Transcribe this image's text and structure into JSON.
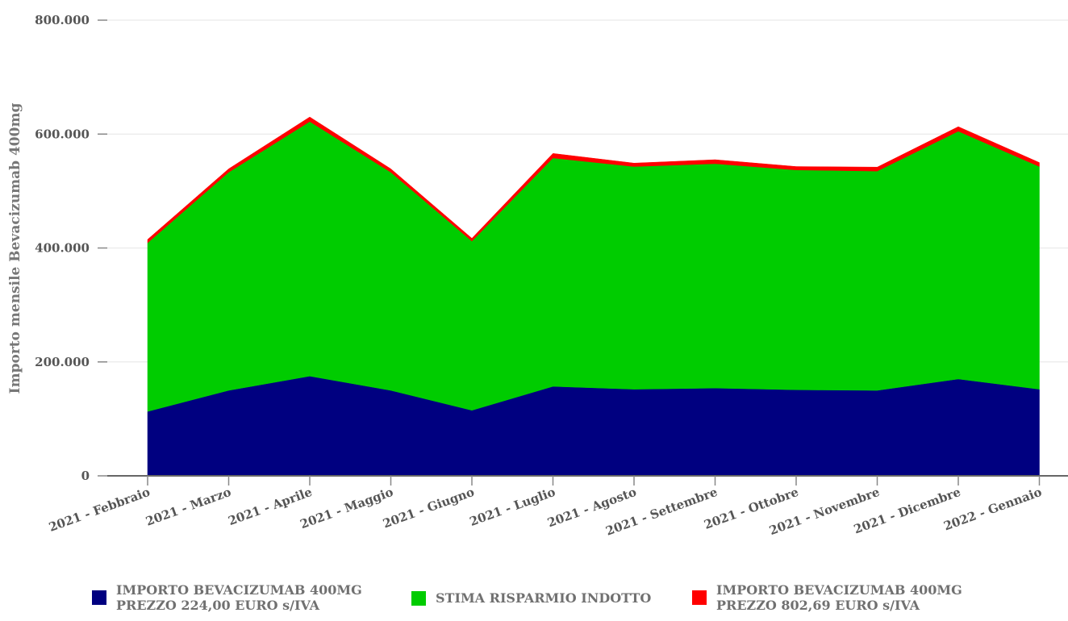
{
  "chart_data": {
    "type": "area",
    "stacked": true,
    "ylabel": "Importo mensile Bevacizumab 400mg",
    "ylim": [
      0,
      800000
    ],
    "y_ticks": [
      "0",
      "200.000",
      "400.000",
      "600.000",
      "800.000"
    ],
    "y_tick_values": [
      0,
      200000,
      400000,
      600000,
      800000
    ],
    "grid": true,
    "legend_position": "bottom",
    "categories": [
      "2021 - Febbraio",
      "2021 - Marzo",
      "2021 - Aprile",
      "2021 - Maggio",
      "2021 - Giugno",
      "2021 - Luglio",
      "2021 - Agosto",
      "2021 - Settembre",
      "2021 - Ottobre",
      "2021 - Novembre",
      "2021 - Dicembre",
      "2022 - Gennaio"
    ],
    "series": [
      {
        "name": "IMPORTO BEVACIZUMAB 400MG PREZZO 224,00 EURO s/IVA",
        "name_lines": [
          "IMPORTO BEVACIZUMAB 400MG",
          "PREZZO 224,00 EURO s/IVA"
        ],
        "color": "#000080",
        "values": [
          113000,
          150000,
          175000,
          150000,
          115000,
          157000,
          152000,
          154000,
          151000,
          150000,
          170000,
          152000
        ]
      },
      {
        "name": "STIMA RISPARMIO INDOTTO",
        "name_lines": [
          "STIMA RISPARMIO INDOTTO"
        ],
        "color": "#00cc00",
        "values": [
          296000,
          383000,
          447000,
          383000,
          297000,
          401000,
          391000,
          394000,
          386000,
          385000,
          435000,
          391000
        ]
      },
      {
        "name": "IMPORTO BEVACIZUMAB 400MG PREZZO 802,69 EURO s/IVA",
        "name_lines": [
          "IMPORTO BEVACIZUMAB 400MG",
          "PREZZO 802,69 EURO s/IVA"
        ],
        "color": "#ff0000",
        "values": [
          6000,
          6000,
          8000,
          6000,
          5000,
          8000,
          6000,
          7000,
          6000,
          7000,
          8000,
          7000
        ]
      }
    ]
  }
}
